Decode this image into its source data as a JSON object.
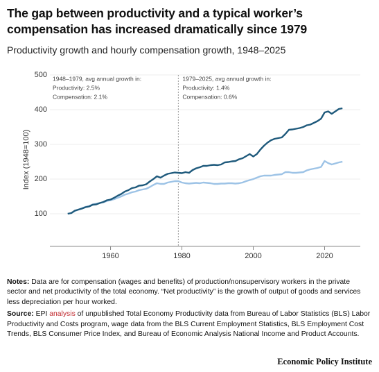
{
  "chart_data": {
    "type": "line",
    "title": "The gap between productivity and a typical worker’s compensation has increased dramatically since 1979",
    "subtitle": "Productivity growth and hourly compensation growth, 1948–2025",
    "y_label": "Index (1948=100)",
    "x": [
      1948,
      1949,
      1950,
      1951,
      1952,
      1953,
      1954,
      1955,
      1956,
      1957,
      1958,
      1959,
      1960,
      1961,
      1962,
      1963,
      1964,
      1965,
      1966,
      1967,
      1968,
      1969,
      1970,
      1971,
      1972,
      1973,
      1974,
      1975,
      1976,
      1977,
      1978,
      1979,
      1980,
      1981,
      1982,
      1983,
      1984,
      1985,
      1986,
      1987,
      1988,
      1989,
      1990,
      1991,
      1992,
      1993,
      1994,
      1995,
      1996,
      1997,
      1998,
      1999,
      2000,
      2001,
      2002,
      2003,
      2004,
      2005,
      2006,
      2007,
      2008,
      2009,
      2010,
      2011,
      2012,
      2013,
      2014,
      2015,
      2016,
      2017,
      2018,
      2019,
      2020,
      2021,
      2022,
      2023,
      2024,
      2025
    ],
    "series": [
      {
        "color": "#1f5a7c",
        "values": [
          100,
          102,
          109,
          112,
          115,
          119,
          121,
          126,
          127,
          131,
          134,
          139,
          141,
          146,
          152,
          157,
          164,
          168,
          174,
          176,
          181,
          182,
          185,
          193,
          200,
          208,
          204,
          210,
          215,
          217,
          219,
          218,
          217,
          220,
          218,
          226,
          231,
          234,
          238,
          238,
          240,
          241,
          240,
          242,
          248,
          249,
          251,
          252,
          257,
          260,
          266,
          272,
          265,
          272,
          285,
          296,
          305,
          312,
          316,
          318,
          320,
          330,
          342,
          343,
          345,
          347,
          350,
          355,
          357,
          362,
          367,
          374,
          392,
          395,
          388,
          395,
          402,
          404
        ]
      },
      {
        "color": "#9dc3e6",
        "values": [
          100,
          102,
          108,
          112,
          116,
          120,
          122,
          127,
          129,
          131,
          133,
          137,
          139,
          142,
          146,
          150,
          155,
          158,
          162,
          164,
          168,
          170,
          172,
          177,
          183,
          188,
          186,
          186,
          190,
          192,
          194,
          194,
          190,
          188,
          187,
          188,
          189,
          188,
          190,
          189,
          188,
          186,
          186,
          187,
          187,
          188,
          188,
          187,
          188,
          190,
          194,
          197,
          200,
          204,
          208,
          210,
          210,
          210,
          212,
          213,
          214,
          220,
          220,
          218,
          218,
          219,
          220,
          225,
          228,
          230,
          232,
          235,
          252,
          246,
          242,
          245,
          248,
          250
        ]
      }
    ],
    "xlim": [
      1943,
      2030
    ],
    "xticks": [
      1960,
      1980,
      2000,
      2020
    ],
    "ylim": [
      0,
      500
    ],
    "yticks": [
      100,
      200,
      300,
      400,
      500
    ],
    "grid": true,
    "reference_line_x": 1979,
    "annotations": [
      {
        "lines": [
          "1948–1979, avg annual growth in:",
          "Productivity: 2.5%",
          "Compensation: 2.1%"
        ]
      },
      {
        "lines": [
          "1979–2025, avg annual growth in:",
          "Productivity: 1.4%",
          "Compensation: 0.6%"
        ]
      }
    ]
  },
  "notes": {
    "label": "Notes:",
    "text": "Data are for compensation (wages and benefits) of production/nonsupervisory workers in the private sector and net productivity of the total economy. “Net productivity” is the growth of output of goods and services less depreciation per hour worked."
  },
  "source": {
    "label": "Source:",
    "text_before": "EPI",
    "link": "analysis",
    "text_after": "of unpublished Total Economy Productivity data from Bureau of Labor Statistics (BLS) Labor Productivity and Costs program, wage data from the BLS Current Employment Statistics, BLS Employment Cost Trends, BLS Consumer Price Index, and Bureau of Economic Analysis National Income and Product Accounts."
  },
  "footer": "Economic Policy Institute"
}
